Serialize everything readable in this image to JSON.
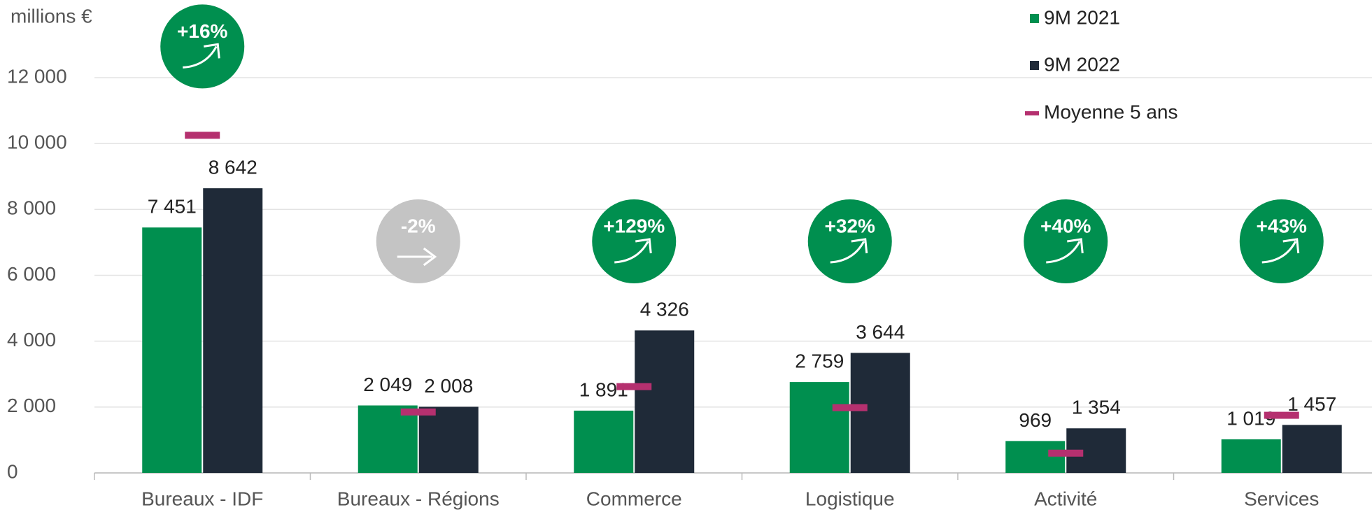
{
  "chart_data": {
    "type": "bar",
    "y_unit_label": "millions €",
    "categories": [
      "Bureaux - IDF",
      "Bureaux - Régions",
      "Commerce",
      "Logistique",
      "Activité",
      "Services"
    ],
    "series": [
      {
        "name": "9M 2021",
        "color": "#008f4f",
        "values": [
          7451,
          2049,
          1891,
          2759,
          969,
          1019
        ],
        "value_labels": [
          "7 451",
          "2 049",
          "1 891",
          "2 759",
          "969",
          "1 019"
        ]
      },
      {
        "name": "9M 2022",
        "color": "#1f2a38",
        "values": [
          8642,
          2008,
          4326,
          3644,
          1354,
          1457
        ],
        "value_labels": [
          "8 642",
          "2 008",
          "4 326",
          "3 644",
          "1 354",
          "1 457"
        ]
      },
      {
        "name": "Moyenne 5 ans",
        "color": "#b5306f",
        "marker": "dash",
        "values": [
          10250,
          1850,
          2620,
          1980,
          600,
          1750
        ]
      }
    ],
    "annotations": [
      {
        "text": "+16%",
        "color": "#008f4f"
      },
      {
        "text": "-2%",
        "color": "#c4c4c4"
      },
      {
        "text": "+129%",
        "color": "#008f4f"
      },
      {
        "text": "+32%",
        "color": "#008f4f"
      },
      {
        "text": "+40%",
        "color": "#008f4f"
      },
      {
        "text": "+43%",
        "color": "#008f4f"
      }
    ],
    "ylim": [
      0,
      12000
    ],
    "yticks": [
      0,
      {
        "value": 2000,
        "label": "2 000"
      },
      {
        "value": 4000,
        "label": "4 000"
      },
      {
        "value": 6000,
        "label": "6 000"
      },
      {
        "value": 8000,
        "label": "8 000"
      },
      {
        "value": 10000,
        "label": "10 000"
      },
      {
        "value": 12000,
        "label": "12 000"
      }
    ],
    "grid": true,
    "legend": "top-right"
  }
}
